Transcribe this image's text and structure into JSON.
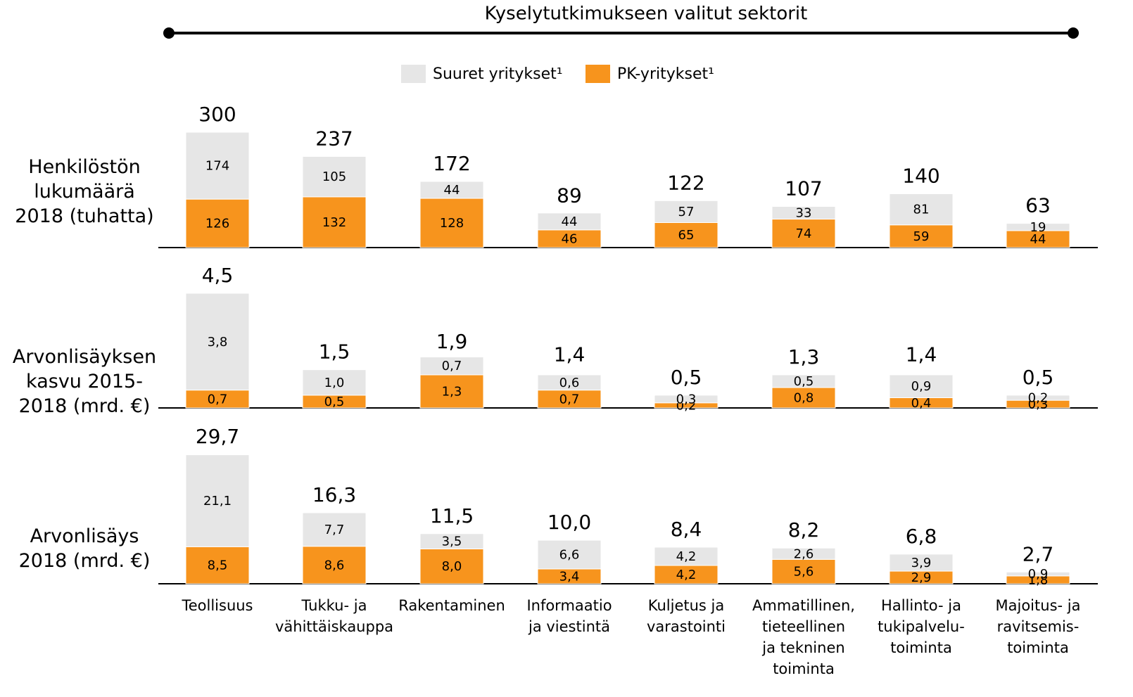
{
  "title": "Kyselytutkimukseen valitut sektorit",
  "chart_data": [
    {
      "type": "bar",
      "stacked": true,
      "ylabel": "Henkilöstön\nlukumäärä\n2018 (tuhatta)",
      "series": [
        {
          "name": "PK-yritykset¹",
          "color": "#f7941d",
          "values": [
            126,
            132,
            128,
            46,
            65,
            74,
            59,
            44
          ]
        },
        {
          "name": "Suuret yritykset¹",
          "color": "#e6e6e6",
          "values": [
            174,
            105,
            44,
            44,
            57,
            33,
            81,
            19
          ]
        }
      ],
      "totals": [
        300,
        237,
        172,
        89,
        122,
        107,
        140,
        63
      ]
    },
    {
      "type": "bar",
      "stacked": true,
      "ylabel": "Arvonlisäyksen\nkasvu 2015-\n2018 (mrd. €)",
      "series": [
        {
          "values": [
            0.7,
            0.5,
            1.3,
            0.7,
            0.2,
            0.8,
            0.4,
            0.3
          ],
          "value_labels": [
            "0,7",
            "0,5",
            "1,3",
            "0,7",
            "0,2",
            "0,8",
            "0,4",
            "0,3"
          ]
        },
        {
          "values": [
            3.8,
            1.0,
            0.7,
            0.6,
            0.3,
            0.5,
            0.9,
            0.2
          ],
          "value_labels": [
            "3,8",
            "1,0",
            "0,7",
            "0,6",
            "0,3",
            "0,5",
            "0,9",
            "0,2"
          ]
        }
      ],
      "totals": [
        4.5,
        1.5,
        1.9,
        1.4,
        0.5,
        1.3,
        1.4,
        0.5
      ],
      "totals_labels": [
        "4,5",
        "1,5",
        "1,9",
        "1,4",
        "0,5",
        "1,3",
        "1,4",
        "0,5"
      ]
    },
    {
      "type": "bar",
      "stacked": true,
      "ylabel": "Arvonlisäys\n2018 (mrd. €)",
      "categories": [
        "Teollisuus",
        "Tukku- ja\nvähittäiskauppa",
        "Rakentaminen",
        "Informaatio\nja viestintä",
        "Kuljetus ja\nvarastointi",
        "Ammatillinen,\ntieteellinen\nja tekninen\ntoiminta",
        "Hallinto- ja\ntukipalvelu-\ntoiminta",
        "Majoitus- ja\nravitsemis-\ntoiminta"
      ],
      "series": [
        {
          "values": [
            8.5,
            8.6,
            8.0,
            3.4,
            4.2,
            5.6,
            2.9,
            1.8
          ],
          "value_labels": [
            "8,5",
            "8,6",
            "8,0",
            "3,4",
            "4,2",
            "5,6",
            "2,9",
            "1,8"
          ]
        },
        {
          "values": [
            21.1,
            7.7,
            3.5,
            6.6,
            4.2,
            2.6,
            3.9,
            0.9
          ],
          "value_labels": [
            "21,1",
            "7,7",
            "3,5",
            "6,6",
            "4,2",
            "2,6",
            "3,9",
            "0,9"
          ]
        }
      ],
      "totals": [
        29.7,
        16.3,
        11.5,
        10.0,
        8.4,
        8.2,
        6.8,
        2.7
      ],
      "totals_labels": [
        "29,7",
        "16,3",
        "11,5",
        "10,0",
        "8,4",
        "8,2",
        "6,8",
        "2,7"
      ]
    }
  ]
}
